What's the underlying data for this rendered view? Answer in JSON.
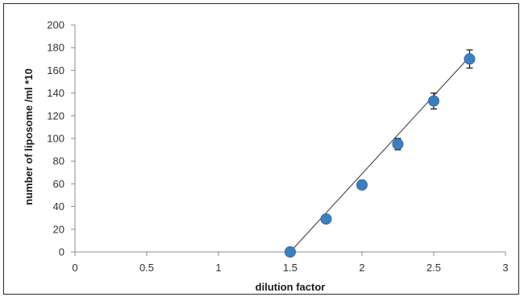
{
  "chart_data": {
    "type": "scatter",
    "xlabel": "dilution factor",
    "ylabel": "number of liposome /ml *10",
    "xlim": [
      0,
      3
    ],
    "ylim": [
      0,
      200
    ],
    "x_ticks": [
      0,
      0.5,
      1,
      1.5,
      2,
      2.5,
      3
    ],
    "y_ticks": [
      0,
      20,
      40,
      60,
      80,
      100,
      120,
      140,
      160,
      180,
      200
    ],
    "grid": false,
    "legend": "none",
    "series": [
      {
        "x": [
          1.5,
          1.75,
          2,
          2.25,
          2.5,
          2.75
        ],
        "y": [
          0,
          29,
          59,
          95,
          133,
          170
        ],
        "error": [
          0,
          0,
          0,
          5,
          7,
          8
        ],
        "color": "#3d7ec0"
      }
    ],
    "trendline": {
      "type": "linear",
      "x": [
        1.5,
        2.75
      ],
      "y": [
        0,
        172
      ],
      "color": "#333333"
    }
  }
}
